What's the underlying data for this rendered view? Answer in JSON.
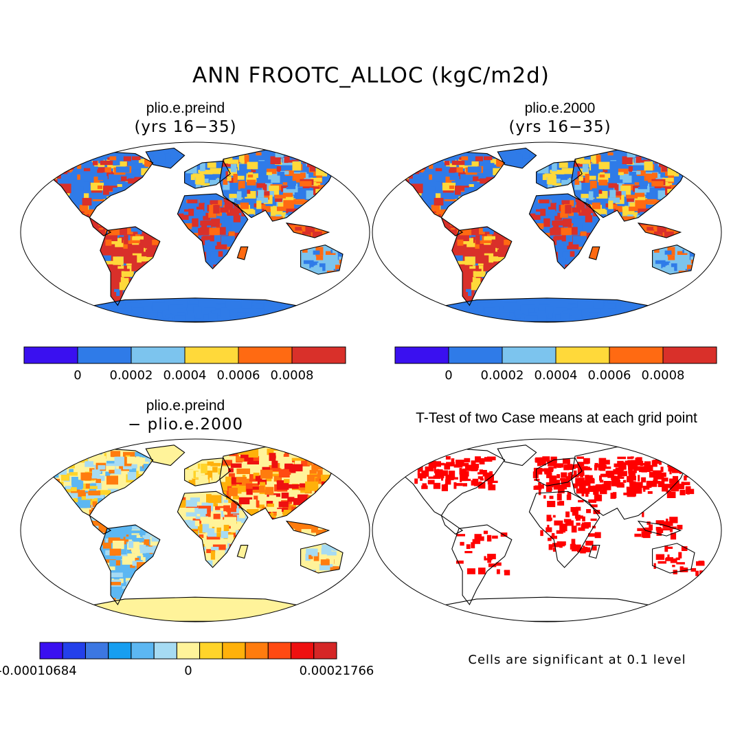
{
  "title": "ANN FROOTC_ALLOC (kgC/m2d)",
  "panels": [
    {
      "title": "plio.e.preind",
      "subtitle": "(yrs 16−35)",
      "type": "field"
    },
    {
      "title": "plio.e.2000",
      "subtitle": "(yrs 16−35)",
      "type": "field"
    },
    {
      "title": "plio.e.preind",
      "subtitle": "− plio.e.2000",
      "type": "difference"
    },
    {
      "title": "T-Test of two Case means at each grid point",
      "subtitle": "",
      "type": "significance"
    }
  ],
  "colorbars": {
    "field": {
      "colors": [
        "#3a10f0",
        "#2f7be8",
        "#7cc4ee",
        "#ffd93a",
        "#ff6a12",
        "#d9302a"
      ],
      "labels": [
        "0",
        "0.0002",
        "0.0004",
        "0.0006",
        "0.0008"
      ]
    },
    "difference": {
      "colors": [
        "#3a10f0",
        "#2340ea",
        "#3c77e2",
        "#179ef0",
        "#5cb7f2",
        "#a6dbf3",
        "#fff39a",
        "#ffd42a",
        "#ffb10a",
        "#ff7c0e",
        "#ff4a12",
        "#ee1010",
        "#d52727"
      ],
      "labels": [
        "-0.00010684",
        "0",
        "0.00021766"
      ]
    }
  },
  "significance_note": "Cells are significant at 0.1 level",
  "colors": {
    "significant": "#ff0000",
    "coastline": "#000000"
  }
}
